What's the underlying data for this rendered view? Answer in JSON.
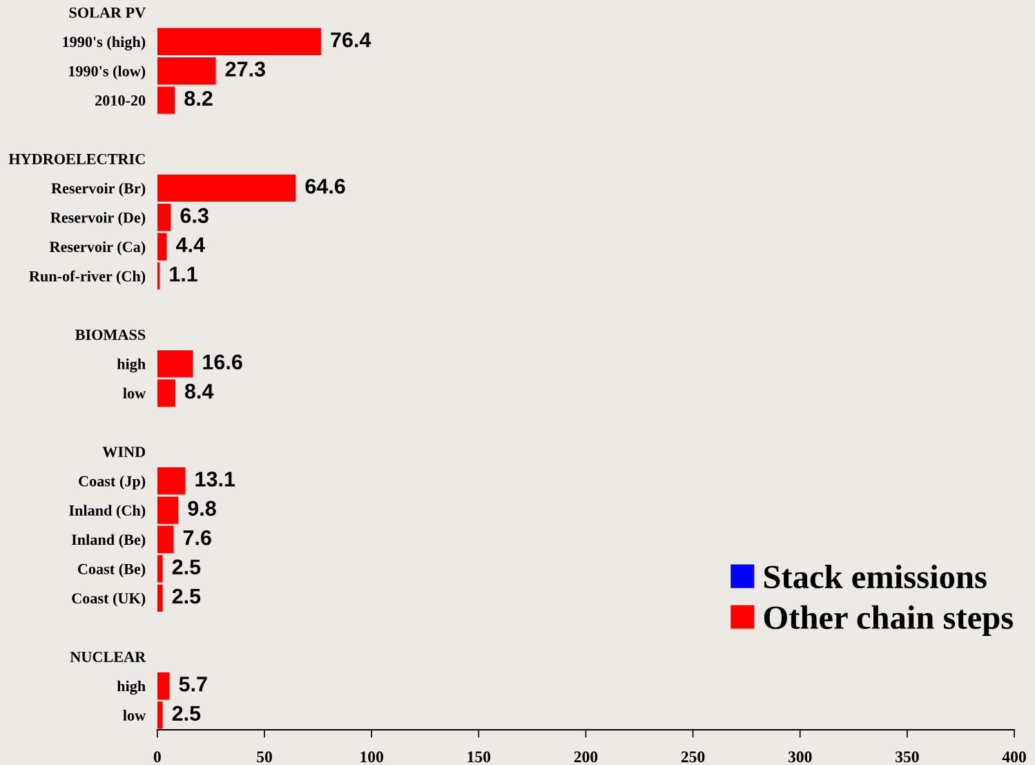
{
  "chart_data": {
    "type": "bar",
    "orientation": "horizontal",
    "stacked": true,
    "categories": [
      "SOLAR PV",
      "1990's (high)",
      "1990's (low)",
      "2010-20",
      null,
      "HYDROELECTRIC",
      "Reservoir (Br)",
      "Reservoir (De)",
      "Reservoir (Ca)",
      "Run-of-river (Ch)",
      null,
      "BIOMASS",
      "high",
      "low",
      null,
      "WIND",
      "Coast (Jp)",
      "Inland (Ch)",
      "Inland (Be)",
      "Coast (Be)",
      "Coast (UK)",
      null,
      "NUCLEAR",
      "high",
      "low"
    ],
    "series": [
      {
        "name": "Stack emissions",
        "color": "#0000ff",
        "values": [
          null,
          null,
          null,
          null,
          null,
          null,
          null,
          null,
          null,
          null,
          null,
          null,
          null,
          null,
          null,
          null,
          null,
          null,
          null,
          null,
          null,
          null,
          null,
          null,
          null
        ]
      },
      {
        "name": "Other chain steps",
        "color": "#ff0000",
        "values": [
          null,
          76.4,
          27.3,
          8.2,
          null,
          null,
          64.6,
          6.3,
          4.4,
          1.1,
          null,
          null,
          16.6,
          8.4,
          null,
          null,
          13.1,
          9.8,
          7.6,
          2.5,
          2.5,
          null,
          null,
          5.7,
          2.5
        ]
      }
    ],
    "xlim": [
      0,
      400
    ],
    "xticks": [
      0,
      50,
      100,
      150,
      200,
      250,
      300,
      350,
      400
    ],
    "data_labels": true,
    "legend": "bottom right",
    "grid": false
  }
}
